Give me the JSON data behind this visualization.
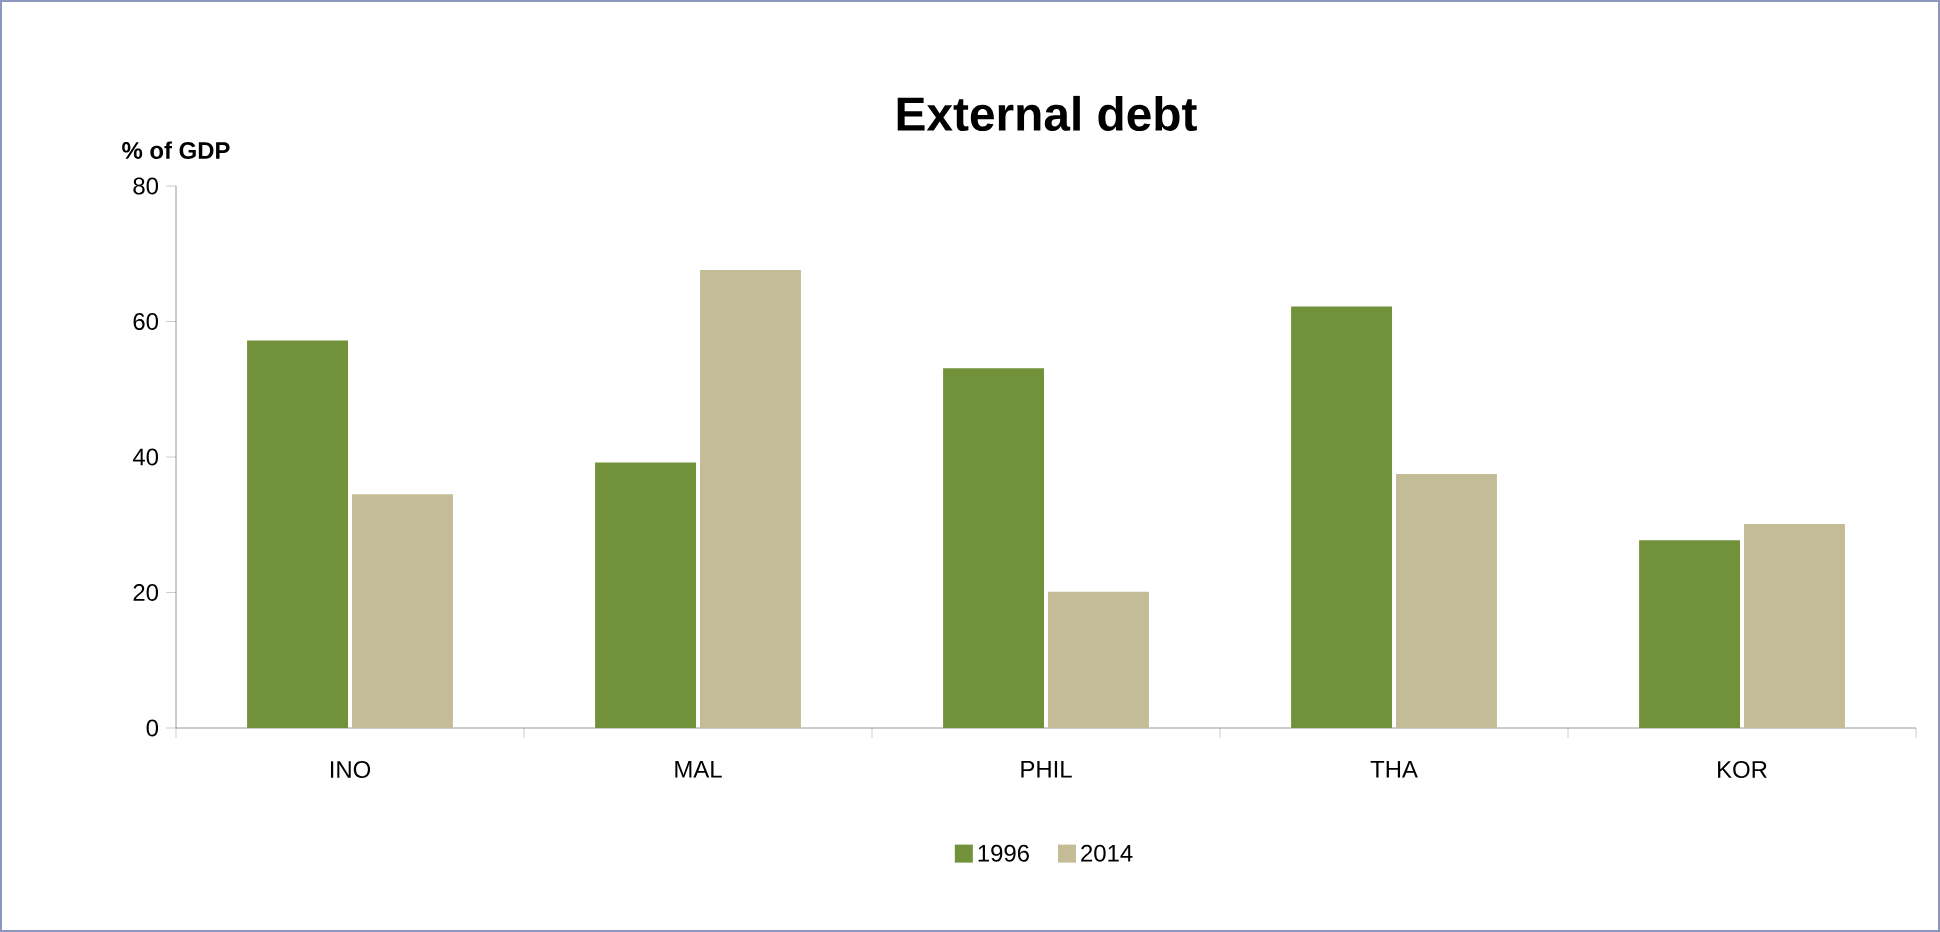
{
  "chart_data": {
    "type": "bar",
    "title": "External debt",
    "ylabel": "% of GDP",
    "categories": [
      "INO",
      "MAL",
      "PHIL",
      "THA",
      "KOR"
    ],
    "series": [
      {
        "name": "1996",
        "color": "#71923a",
        "values": [
          57.2,
          39.2,
          53.1,
          62.2,
          27.7
        ]
      },
      {
        "name": "2014",
        "color": "#c4bc96",
        "values": [
          34.5,
          67.6,
          20.1,
          37.5,
          30.1
        ]
      }
    ],
    "ylim": [
      0,
      80
    ],
    "yticks": [
      0,
      20,
      40,
      60,
      80
    ],
    "grid": false,
    "legend": "bottom"
  }
}
